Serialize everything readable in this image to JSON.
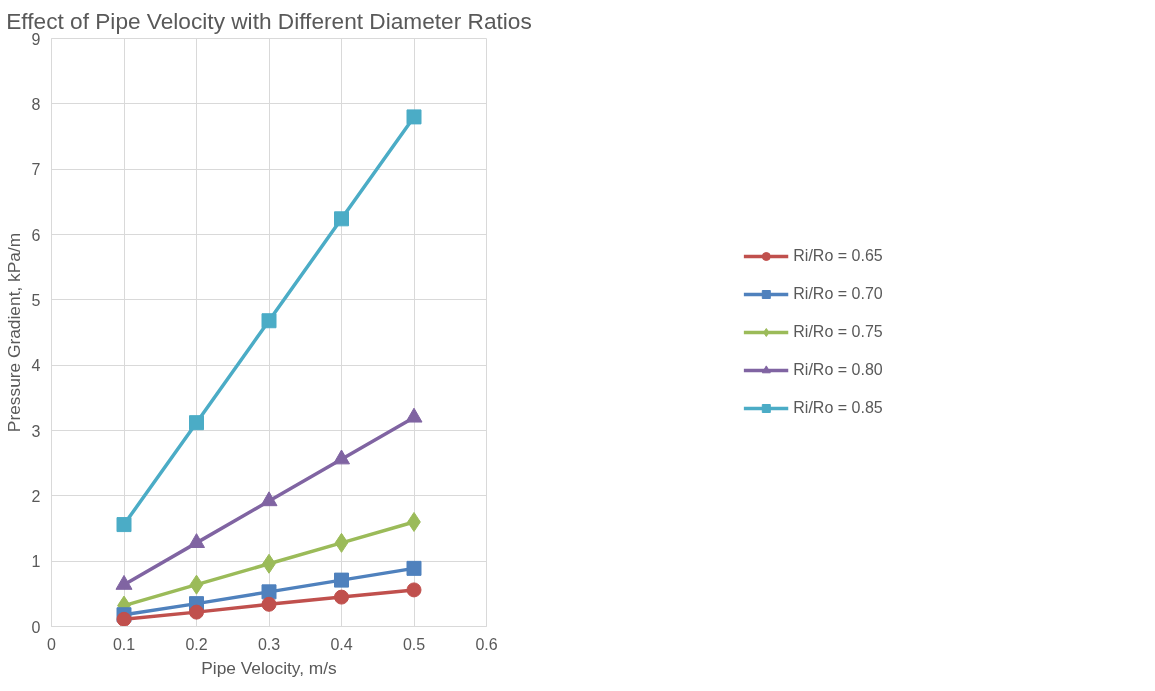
{
  "chart_data": {
    "type": "line",
    "title": "Effect of Pipe Velocity with Different Diameter Ratios",
    "xlabel": "Pipe Velocity, m/s",
    "ylabel": "Pressure Gradient, kPa/m",
    "x": [
      0.1,
      0.2,
      0.3,
      0.4,
      0.5
    ],
    "series": [
      {
        "name": "Ri/Ro = 0.65",
        "color": "#c0504d",
        "marker": "circle",
        "values": [
          0.11,
          0.22,
          0.34,
          0.45,
          0.56
        ]
      },
      {
        "name": "Ri/Ro = 0.70",
        "color": "#4f81bd",
        "marker": "square",
        "values": [
          0.18,
          0.35,
          0.53,
          0.71,
          0.89
        ]
      },
      {
        "name": "Ri/Ro = 0.75",
        "color": "#9bbb59",
        "marker": "diamond",
        "values": [
          0.32,
          0.64,
          0.96,
          1.28,
          1.6
        ]
      },
      {
        "name": "Ri/Ro = 0.80",
        "color": "#8064a2",
        "marker": "triangle",
        "values": [
          0.64,
          1.28,
          1.92,
          2.56,
          3.2
        ]
      },
      {
        "name": "Ri/Ro = 0.85",
        "color": "#4bacc6",
        "marker": "square",
        "values": [
          1.56,
          3.12,
          4.68,
          6.24,
          7.8
        ]
      }
    ],
    "xlim": [
      0,
      0.6
    ],
    "xticks": [
      0,
      0.1,
      0.2,
      0.3,
      0.4,
      0.5,
      0.6
    ],
    "ylim": [
      0,
      9
    ],
    "yticks": [
      0,
      1,
      2,
      3,
      4,
      5,
      6,
      7,
      8,
      9
    ],
    "grid": true,
    "legend": "right",
    "line_style": "solid"
  }
}
